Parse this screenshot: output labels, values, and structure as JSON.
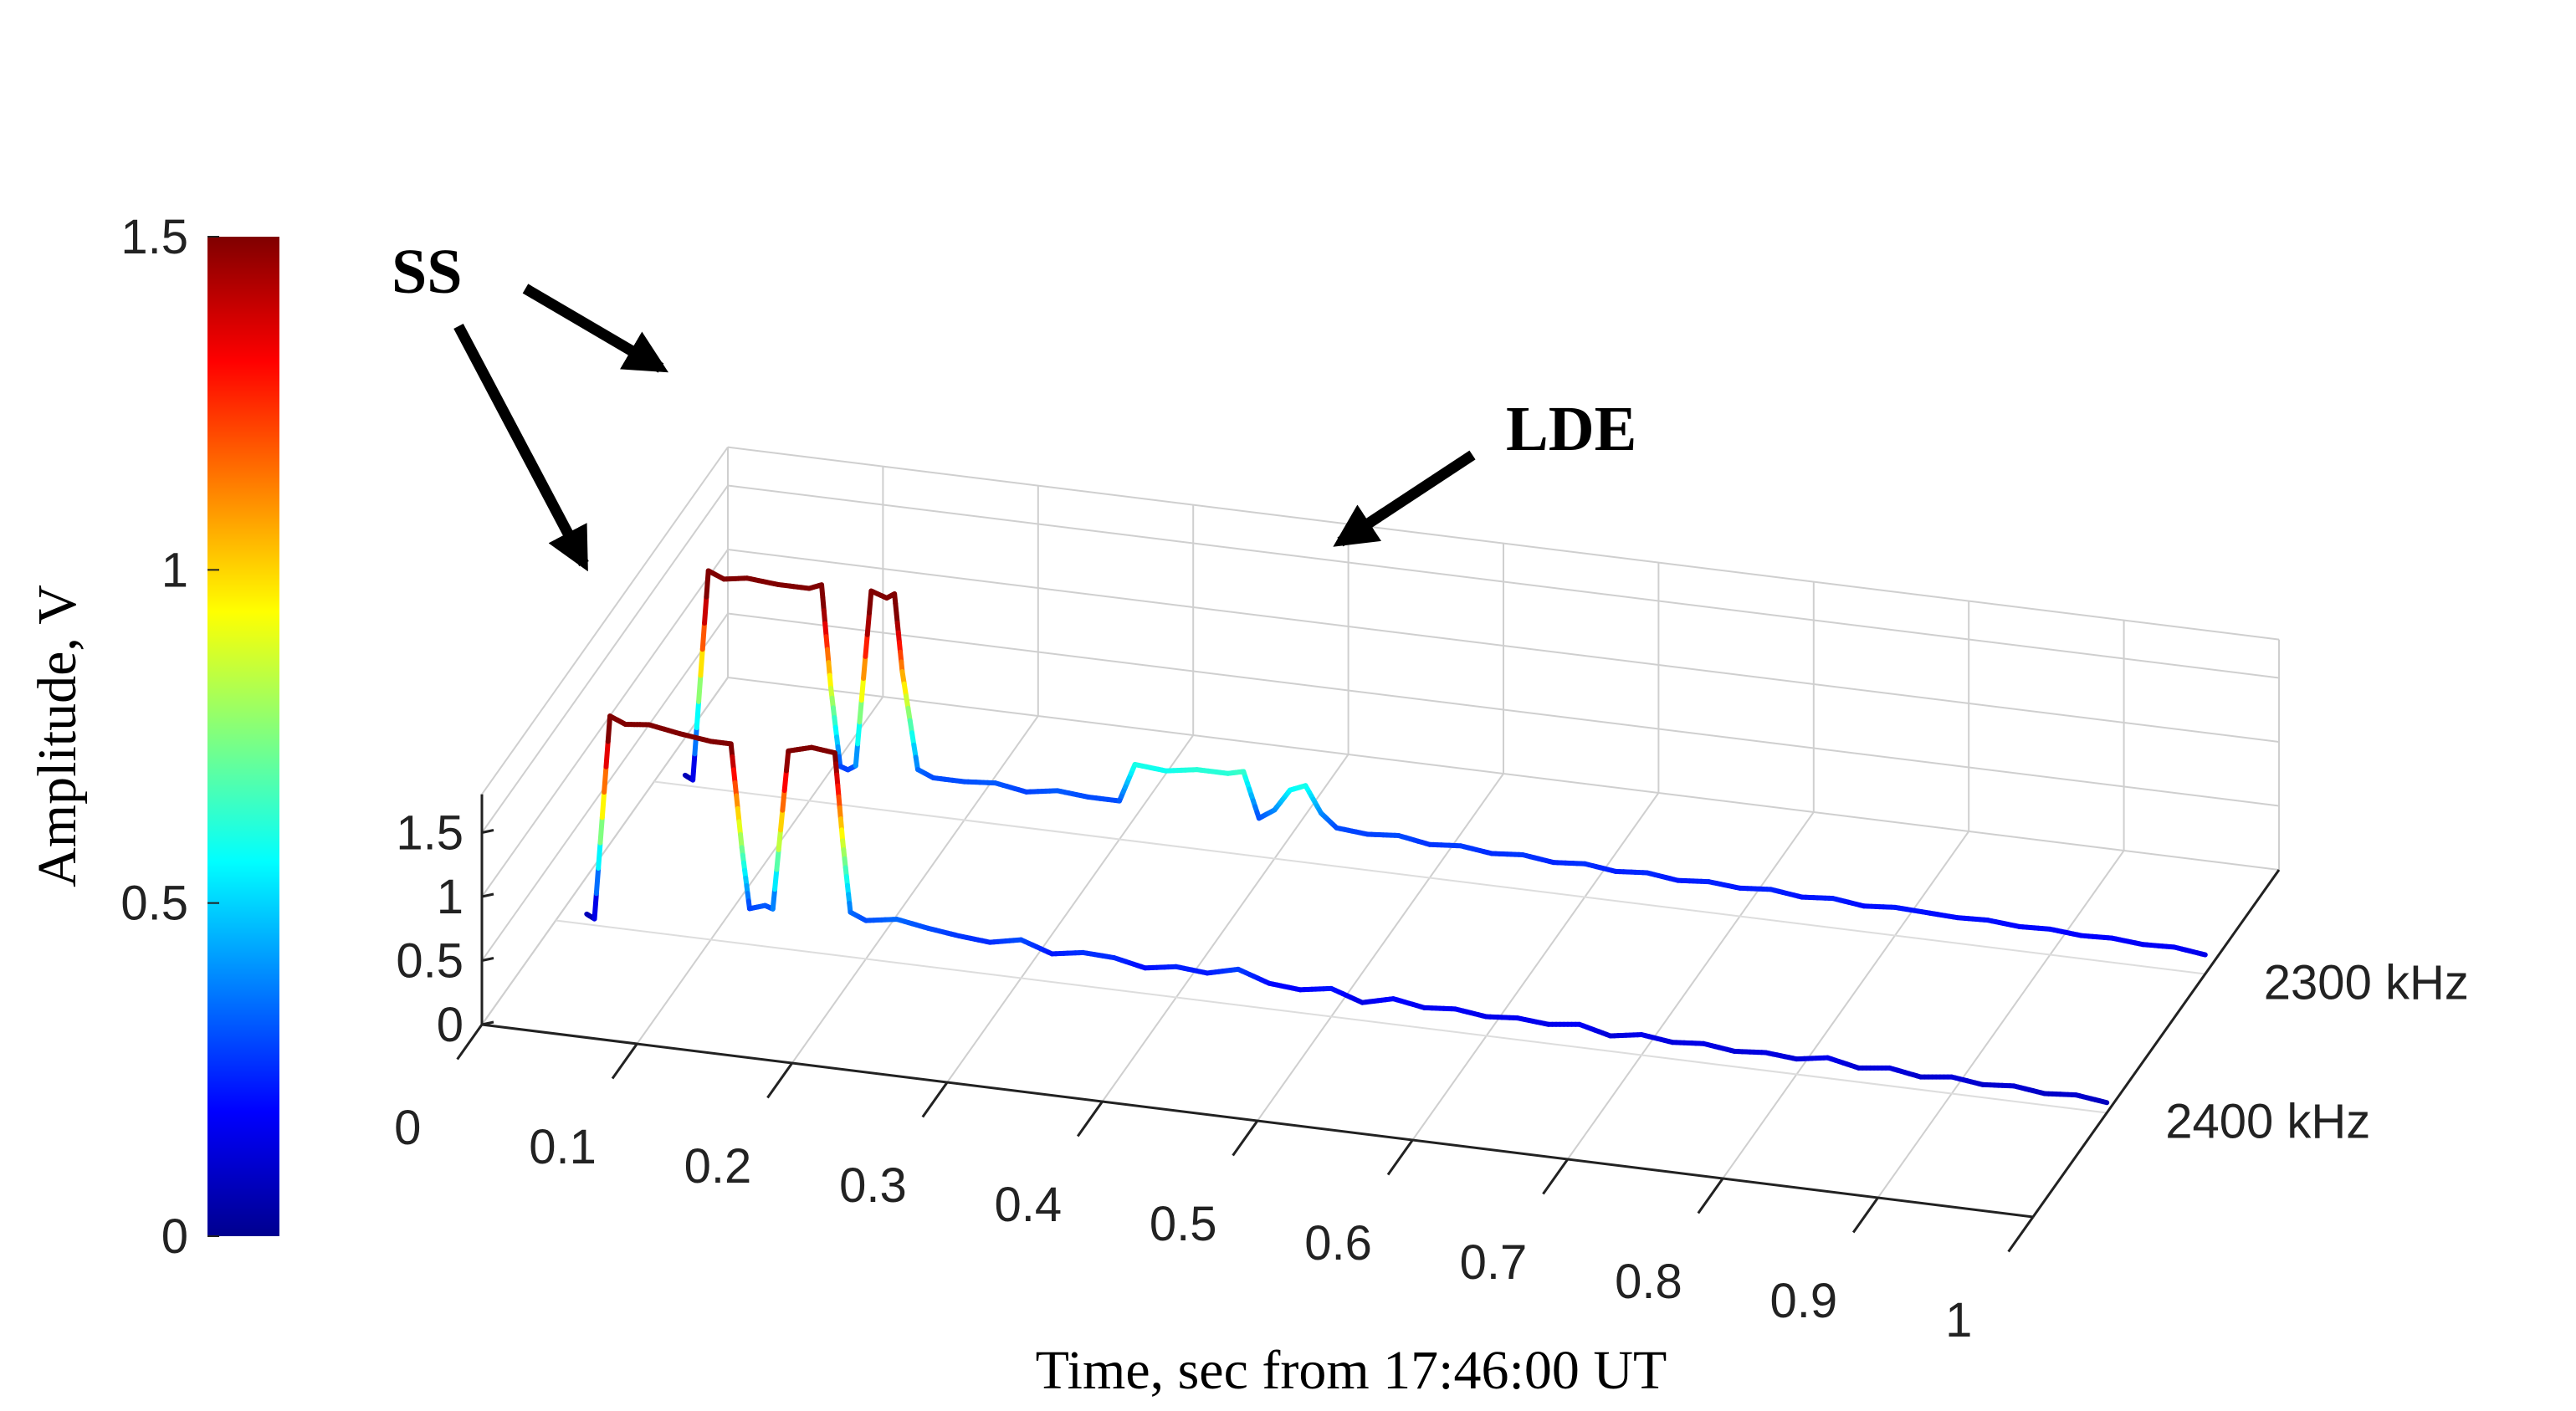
{
  "chart_data": {
    "type": "line",
    "subtype": "3d-waterfall",
    "title": "",
    "xlabel": "Time, sec from 17:46:00 UT",
    "x_ticks": [
      "0",
      "0.1",
      "0.2",
      "0.3",
      "0.4",
      "0.5",
      "0.6",
      "0.7",
      "0.8",
      "0.9",
      "1"
    ],
    "xlim": [
      0,
      1
    ],
    "z_ticks": [
      "0",
      "0.5",
      "1",
      "1.5"
    ],
    "zlim": [
      0,
      1.8
    ],
    "colorbar": {
      "label": "Amplitude, V",
      "ticks": [
        "0",
        "0.5",
        "1",
        "1.5"
      ],
      "range": [
        0,
        1.5
      ],
      "colormap": "jet",
      "stops": [
        "#00008f",
        "#0000ff",
        "#00ffff",
        "#ffff00",
        "#ff0000",
        "#800000"
      ]
    },
    "series": [
      {
        "name": "2400 kHz",
        "label": "2400 kHz",
        "x": [
          0.02,
          0.025,
          0.035,
          0.045,
          0.06,
          0.08,
          0.1,
          0.113,
          0.12,
          0.125,
          0.135,
          0.14,
          0.15,
          0.165,
          0.18,
          0.185,
          0.19,
          0.2,
          0.22,
          0.24,
          0.26,
          0.28,
          0.3,
          0.32,
          0.34,
          0.36,
          0.38,
          0.4,
          0.42,
          0.44,
          0.46,
          0.48,
          0.5,
          0.52,
          0.54,
          0.56,
          0.58,
          0.6,
          0.62,
          0.64,
          0.66,
          0.68,
          0.7,
          0.72,
          0.74,
          0.76,
          0.78,
          0.8,
          0.82,
          0.84,
          0.86,
          0.88,
          0.9,
          0.92,
          0.94,
          0.96,
          0.98,
          1.0
        ],
        "values": [
          0.08,
          0.05,
          1.65,
          1.6,
          1.62,
          1.58,
          1.55,
          1.55,
          0.75,
          0.28,
          0.32,
          0.3,
          1.55,
          1.6,
          1.58,
          0.9,
          0.35,
          0.3,
          0.34,
          0.3,
          0.27,
          0.25,
          0.3,
          0.22,
          0.26,
          0.25,
          0.2,
          0.24,
          0.22,
          0.28,
          0.2,
          0.18,
          0.22,
          0.14,
          0.2,
          0.16,
          0.18,
          0.15,
          0.17,
          0.15,
          0.18,
          0.12,
          0.16,
          0.13,
          0.15,
          0.12,
          0.14,
          0.12,
          0.16,
          0.11,
          0.14,
          0.1,
          0.13,
          0.1,
          0.12,
          0.09,
          0.11,
          0.08
        ]
      },
      {
        "name": "2300 kHz",
        "label": "2300 kHz",
        "x": [
          0.02,
          0.025,
          0.035,
          0.045,
          0.06,
          0.08,
          0.1,
          0.108,
          0.114,
          0.12,
          0.125,
          0.13,
          0.14,
          0.15,
          0.155,
          0.16,
          0.17,
          0.18,
          0.2,
          0.22,
          0.24,
          0.26,
          0.28,
          0.3,
          0.31,
          0.33,
          0.35,
          0.37,
          0.38,
          0.39,
          0.4,
          0.41,
          0.42,
          0.43,
          0.44,
          0.46,
          0.48,
          0.5,
          0.52,
          0.54,
          0.56,
          0.58,
          0.6,
          0.62,
          0.64,
          0.66,
          0.68,
          0.7,
          0.72,
          0.74,
          0.76,
          0.78,
          0.8,
          0.82,
          0.84,
          0.86,
          0.88,
          0.9,
          0.92,
          0.94,
          0.96,
          0.98,
          1.0
        ],
        "values": [
          0.08,
          0.05,
          1.7,
          1.65,
          1.68,
          1.66,
          1.66,
          1.7,
          0.9,
          0.3,
          0.28,
          0.32,
          1.7,
          1.66,
          1.7,
          1.1,
          0.35,
          0.3,
          0.3,
          0.32,
          0.28,
          0.32,
          0.3,
          0.3,
          0.6,
          0.58,
          0.62,
          0.62,
          0.65,
          0.3,
          0.38,
          0.55,
          0.6,
          0.4,
          0.3,
          0.28,
          0.3,
          0.26,
          0.28,
          0.25,
          0.27,
          0.24,
          0.26,
          0.23,
          0.25,
          0.22,
          0.24,
          0.22,
          0.24,
          0.21,
          0.23,
          0.2,
          0.22,
          0.21,
          0.2,
          0.21,
          0.19,
          0.2,
          0.18,
          0.19,
          0.17,
          0.18,
          0.15
        ]
      }
    ],
    "annotations": [
      {
        "text": "SS",
        "target": "2300 kHz spike ~0.03 s and 2400 kHz plateau ~0.05 s"
      },
      {
        "text": "LDE",
        "target": "2300 kHz hump ~0.4 s"
      }
    ]
  }
}
